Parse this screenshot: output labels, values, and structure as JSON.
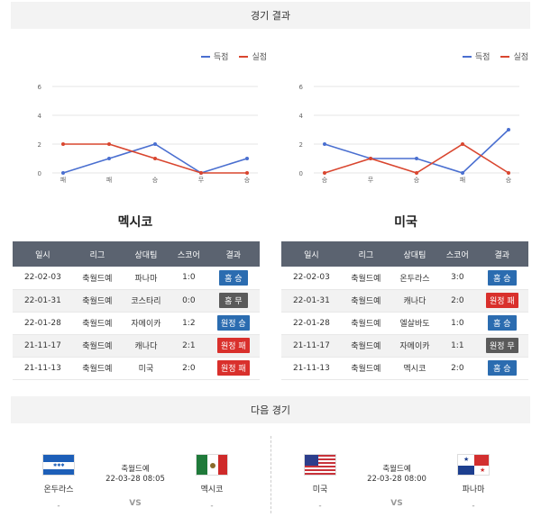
{
  "headers": {
    "results": "경기 결과",
    "next": "다음 경기"
  },
  "legend": {
    "scored": "득점",
    "conceded": "실점"
  },
  "colors": {
    "scored": "#4a6fd0",
    "conceded": "#d9462f"
  },
  "chart_data": [
    {
      "type": "line",
      "categories": [
        "패",
        "패",
        "승",
        "무",
        "승"
      ],
      "series": [
        {
          "name": "득점",
          "values": [
            0,
            1,
            2,
            0,
            1
          ]
        },
        {
          "name": "실점",
          "values": [
            2,
            2,
            1,
            0,
            0
          ]
        }
      ],
      "ylim": [
        0,
        6
      ],
      "yticks": [
        0,
        2,
        4,
        6
      ],
      "grid": true,
      "legend": "top-right"
    },
    {
      "type": "line",
      "categories": [
        "승",
        "무",
        "승",
        "패",
        "승"
      ],
      "series": [
        {
          "name": "득점",
          "values": [
            2,
            1,
            1,
            0,
            3
          ]
        },
        {
          "name": "실점",
          "values": [
            0,
            1,
            0,
            2,
            0
          ]
        }
      ],
      "ylim": [
        0,
        6
      ],
      "yticks": [
        0,
        2,
        4,
        6
      ],
      "grid": true,
      "legend": "top-right"
    }
  ],
  "table_headers": [
    "일시",
    "리그",
    "상대팀",
    "스코어",
    "결과"
  ],
  "teams": [
    {
      "name": "멕시코",
      "rows": [
        {
          "date": "22-02-03",
          "league": "축월드예",
          "opponent": "파나마",
          "score": "1:0",
          "result": "홈 승",
          "type": "home-win"
        },
        {
          "date": "22-01-31",
          "league": "축월드예",
          "opponent": "코스타리",
          "score": "0:0",
          "result": "홈 무",
          "type": "home-draw"
        },
        {
          "date": "22-01-28",
          "league": "축월드예",
          "opponent": "자메이카",
          "score": "1:2",
          "result": "원정 승",
          "type": "away-win"
        },
        {
          "date": "21-11-17",
          "league": "축월드예",
          "opponent": "캐나다",
          "score": "2:1",
          "result": "원정 패",
          "type": "away-loss"
        },
        {
          "date": "21-11-13",
          "league": "축월드예",
          "opponent": "미국",
          "score": "2:0",
          "result": "원정 패",
          "type": "away-loss"
        }
      ]
    },
    {
      "name": "미국",
      "rows": [
        {
          "date": "22-02-03",
          "league": "축월드예",
          "opponent": "온두라스",
          "score": "3:0",
          "result": "홈 승",
          "type": "home-win"
        },
        {
          "date": "22-01-31",
          "league": "축월드예",
          "opponent": "캐나다",
          "score": "2:0",
          "result": "원정 패",
          "type": "away-loss"
        },
        {
          "date": "22-01-28",
          "league": "축월드예",
          "opponent": "엘살바도",
          "score": "1:0",
          "result": "홈 승",
          "type": "home-win"
        },
        {
          "date": "21-11-17",
          "league": "축월드예",
          "opponent": "자메이카",
          "score": "1:1",
          "result": "원정 무",
          "type": "away-draw"
        },
        {
          "date": "21-11-13",
          "league": "축월드예",
          "opponent": "멕시코",
          "score": "2:0",
          "result": "홈 승",
          "type": "home-win"
        }
      ]
    }
  ],
  "next_matches": [
    {
      "home": "온두라스",
      "home_sub": "-",
      "away": "멕시코",
      "away_sub": "-",
      "league": "축월드예",
      "datetime": "22-03-28 08:05",
      "vs": "VS",
      "home_flag": "honduras-flag",
      "away_flag": "mexico-flag"
    },
    {
      "home": "미국",
      "home_sub": "-",
      "away": "파나마",
      "away_sub": "-",
      "league": "축월드예",
      "datetime": "22-03-28 08:00",
      "vs": "VS",
      "home_flag": "usa-flag",
      "away_flag": "panama-flag"
    }
  ]
}
